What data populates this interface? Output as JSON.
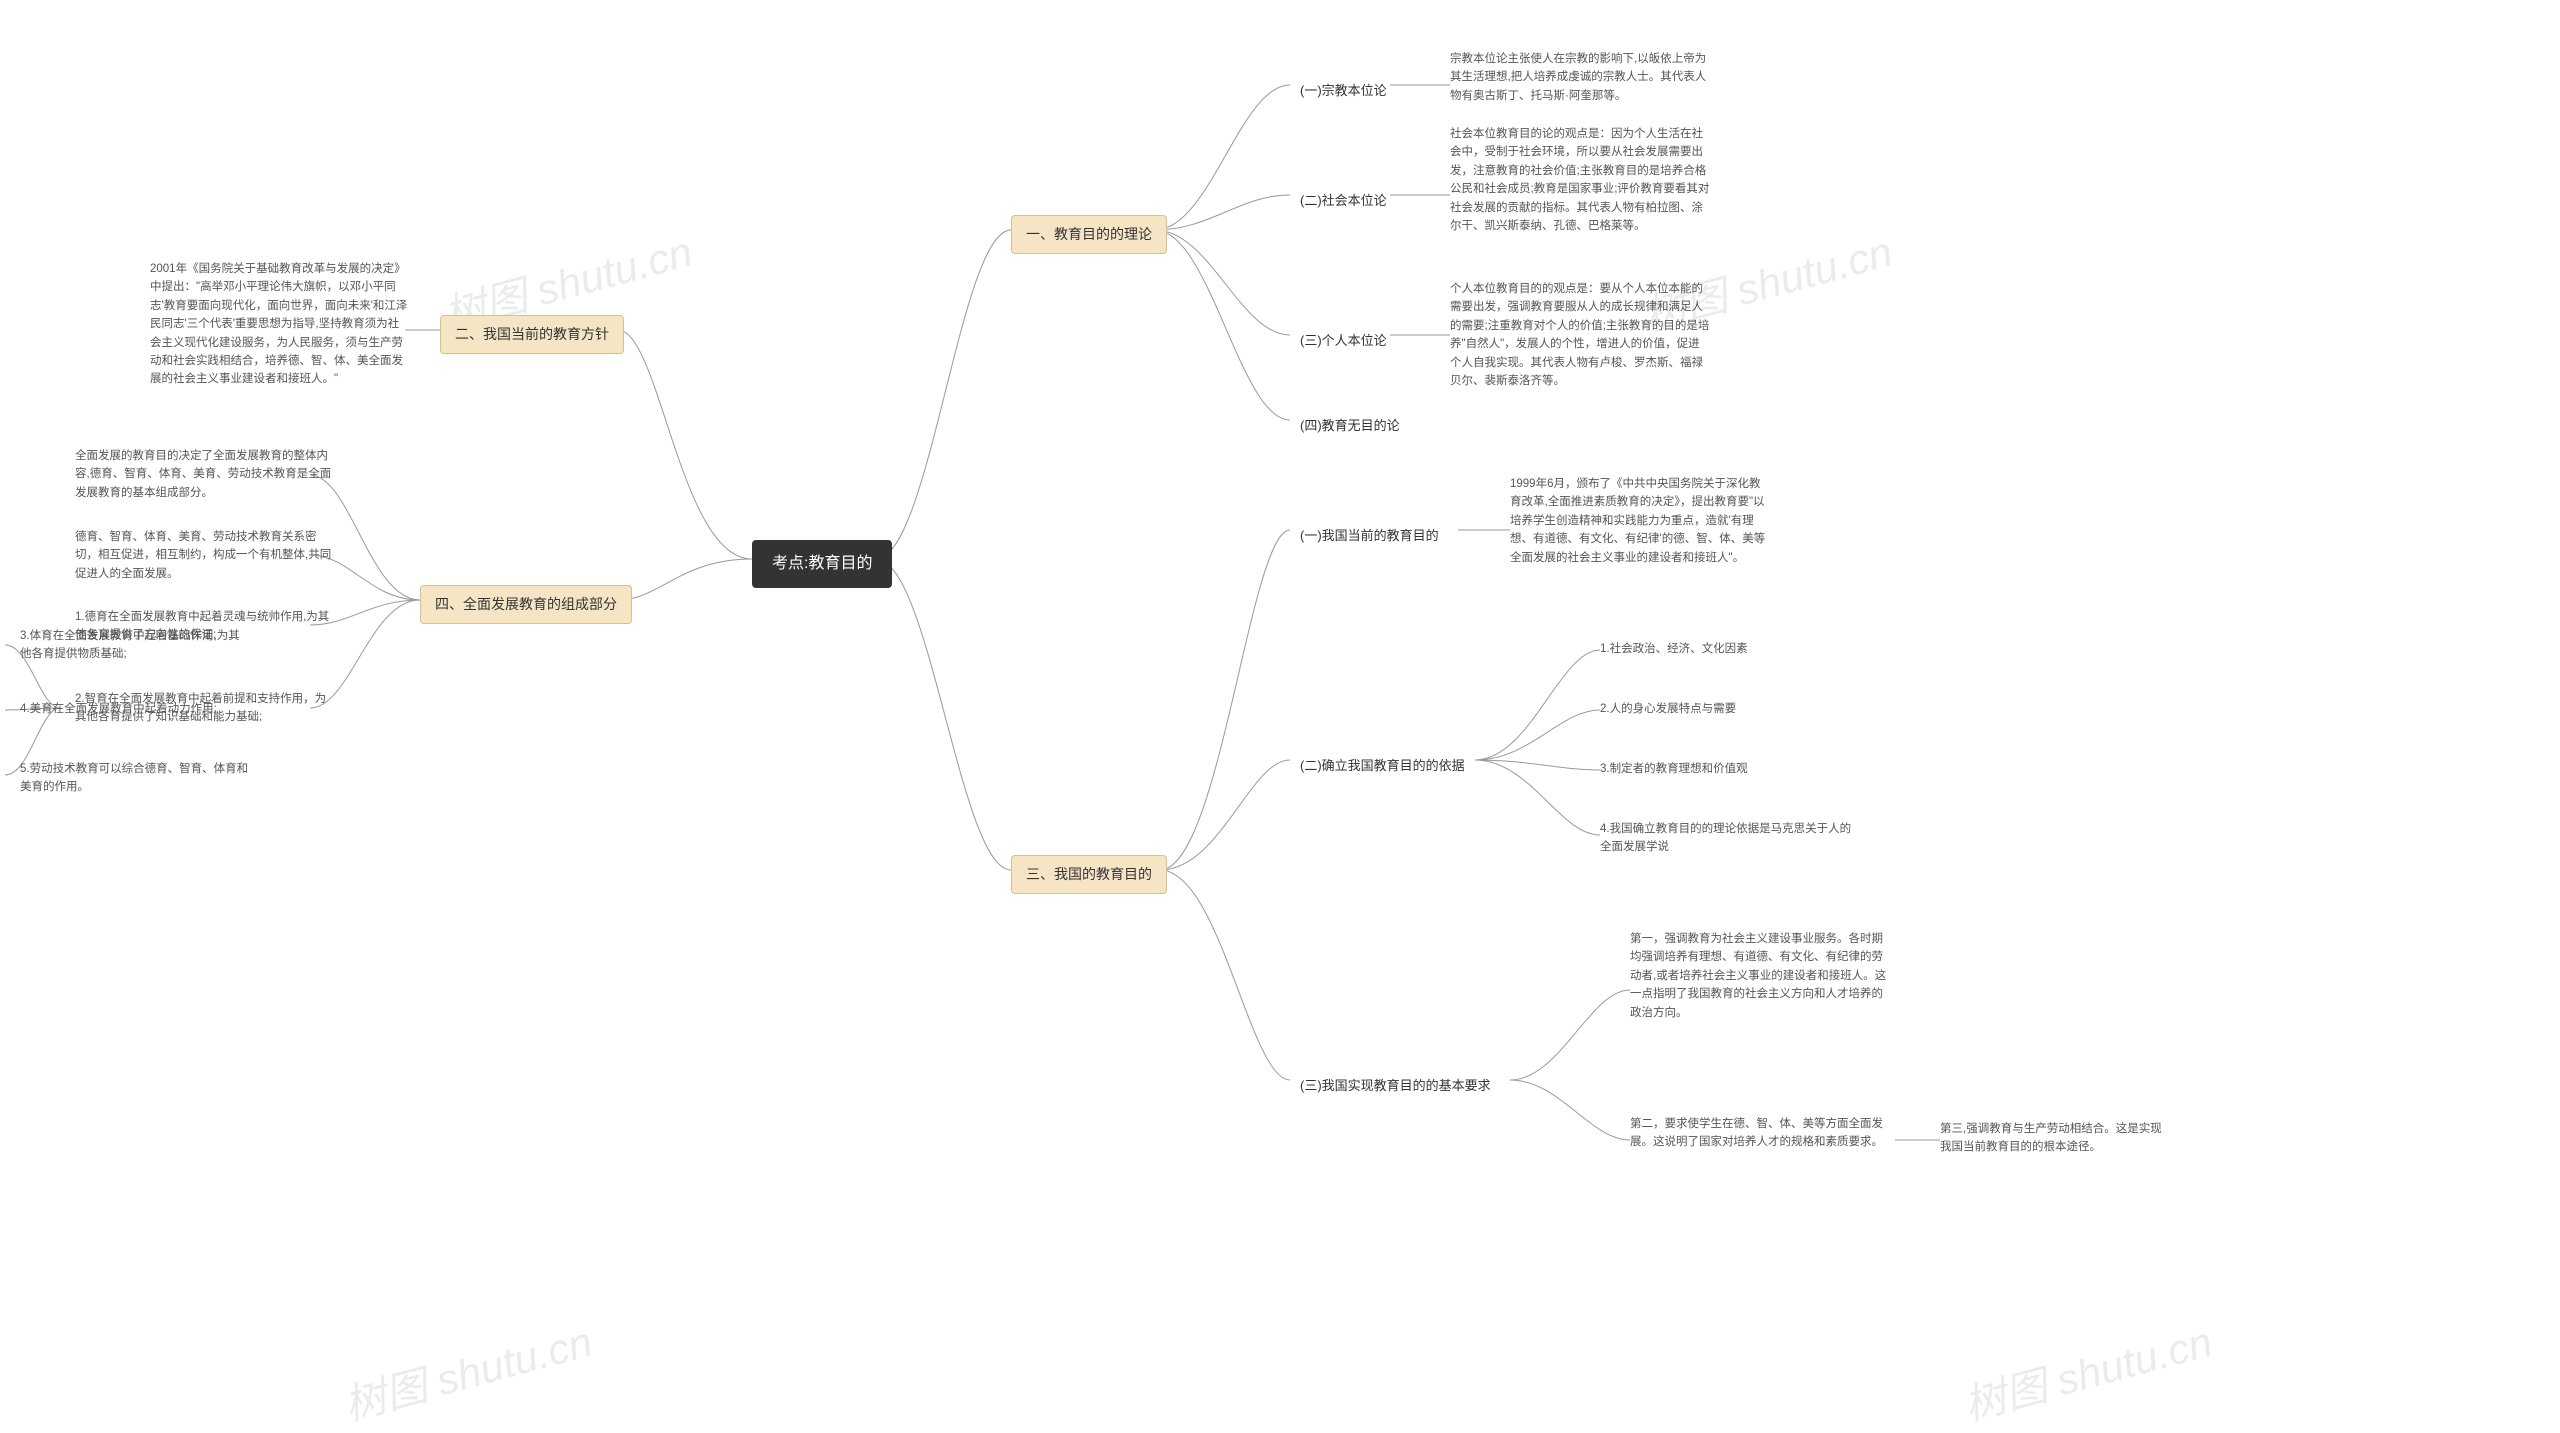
{
  "type": "mindmap",
  "colors": {
    "center_bg": "#333333",
    "center_text": "#ffffff",
    "level2_bg": "#f5e5c4",
    "level2_border": "#d4c090",
    "text": "#555555",
    "connector": "#999999",
    "background": "#ffffff",
    "watermark": "rgba(0,0,0,0.08)"
  },
  "fonts": {
    "center_size": 16,
    "level2_size": 14,
    "leaf_size": 11.5,
    "watermark_size": 42
  },
  "watermark_text": "树图 shutu.cn",
  "center": "考点:教育目的",
  "right_l2_1": "一、教育目的的理论",
  "right_l2_2": "三、我国的教育目的",
  "left_l2_1": "二、我国当前的教育方针",
  "left_l2_2": "四、全面发展教育的组成部分",
  "r1_c1": "(一)宗教本位论",
  "r1_c1_d": "宗教本位论主张使人在宗教的影响下,以皈依上帝为其生活理想,把人培养成虔诚的宗教人士。其代表人物有奥古斯丁、托马斯·阿奎那等。",
  "r1_c2": "(二)社会本位论",
  "r1_c2_d": "社会本位教育目的论的观点是：因为个人生活在社会中，受制于社会环境，所以要从社会发展需要出发，注意教育的社会价值;主张教育目的是培养合格公民和社会成员;教育是国家事业;评价教育要看其对社会发展的贡献的指标。其代表人物有柏拉图、涂尔干、凯兴斯泰纳、孔德、巴格莱等。",
  "r1_c3": "(三)个人本位论",
  "r1_c3_d": "个人本位教育目的的观点是：要从个人本位本能的需要出发，强调教育要服从人的成长规律和满足人的需要;注重教育对个人的价值;主张教育的目的是培养\"自然人\"，发展人的个性，增进人的价值，促进个人自我实现。其代表人物有卢梭、罗杰斯、福禄贝尔、裴斯泰洛齐等。",
  "r1_c4": "(四)教育无目的论",
  "r2_c1": "(一)我国当前的教育目的",
  "r2_c1_d": "1999年6月，颁布了《中共中央国务院关于深化教育改革,全面推进素质教育的决定》，提出教育要\"以培养学生创造精神和实践能力为重点，造就'有理想、有道德、有文化、有纪律'的德、智、体、美等全面发展的社会主义事业的建设者和接班人\"。",
  "r2_c2": "(二)确立我国教育目的的依据",
  "r2_c2_s1": "1.社会政治、经济、文化因素",
  "r2_c2_s2": "2.人的身心发展特点与需要",
  "r2_c2_s3": "3.制定者的教育理想和价值观",
  "r2_c2_s4": "4.我国确立教育目的的理论依据是马克思关于人的全面发展学说",
  "r2_c3": "(三)我国实现教育目的的基本要求",
  "r2_c3_s1": "第一，强调教育为社会主义建设事业服务。各时期均强调培养有理想、有道德、有文化、有纪律的劳动者,或者培养社会主义事业的建设者和接班人。这一点指明了我国教育的社会主义方向和人才培养的政治方向。",
  "r2_c3_s2": "第二，要求使学生在德、智、体、美等方面全面发展。这说明了国家对培养人才的规格和素质要求。",
  "r2_c3_s3": "第三,强调教育与生产劳动相结合。这是实现我国当前教育目的的根本途径。",
  "l1_d": "2001年《国务院关于基础教育改革与发展的决定》中提出：\"高举邓小平理论伟大旗帜，以邓小平同志'教育要面向现代化，面向世界，面向未来'和江泽民同志'三个代表'重要思想为指导,坚持教育须为社会主义现代化建设服务，为人民服务，须与生产劳动和社会实践相结合，培养德、智、体、美全面发展的社会主义事业建设者和接班人。\"",
  "l2_d1": "全面发展的教育目的决定了全面发展教育的整体内容,德育、智育、体育、美育、劳动技术教育是全面发展教育的基本组成部分。",
  "l2_d2": "德育、智育、体育、美育、劳动技术教育关系密切，相互促进，相互制约，构成一个有机整体,共同促进人的全面发展。",
  "l2_d3": "1.德育在全面发展教育中起着灵魂与统帅作用,为其他各育提供了方向性的保证;",
  "l2_d4": "2.智育在全面发展教育中起着前提和支持作用，为其他各育提供了知识基础和能力基础;",
  "l2_d4_s1": "3.体育在全面发展教育中起着基础作用,为其他各育提供物质基础;",
  "l2_d4_s2": "4.美育在全面发展教育中起着动力作用;",
  "l2_d4_s3": "5.劳动技术教育可以综合德育、智育、体育和美育的作用。"
}
